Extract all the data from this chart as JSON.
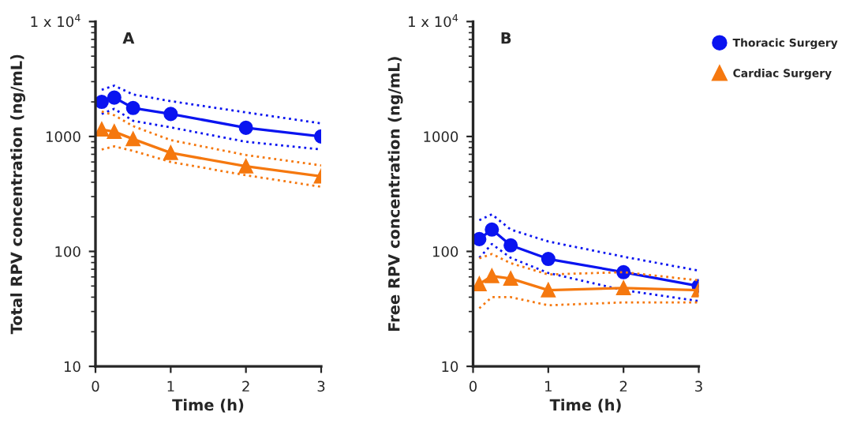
{
  "chart_data": [
    {
      "type": "line",
      "title": "A",
      "xlabel": "Time (h)",
      "ylabel": "Total RPV concentration (ng/mL)",
      "log": "y",
      "line_style": "solid",
      "legend": false,
      "grid": false,
      "x": [
        0.083,
        0.25,
        0.5,
        1,
        2,
        3
      ],
      "series": [
        {
          "color": "#0a14f0",
          "marker": "circle",
          "values": [
            2000,
            2180,
            1770,
            1570,
            1190,
            1000
          ]
        },
        {
          "color": "#0a14f0",
          "marker": "none",
          "line_style": "dotted",
          "values": [
            2550,
            2770,
            2320,
            2030,
            1620,
            1300
          ]
        },
        {
          "color": "#0a14f0",
          "marker": "none",
          "line_style": "dotted",
          "values": [
            1570,
            1740,
            1370,
            1200,
            900,
            770
          ]
        },
        {
          "color": "#f5780f",
          "marker": "triangle",
          "values": [
            1150,
            1100,
            950,
            720,
            550,
            450
          ]
        },
        {
          "color": "#f5780f",
          "marker": "none",
          "line_style": "dotted",
          "values": [
            1650,
            1530,
            1230,
            930,
            690,
            560
          ]
        },
        {
          "color": "#f5780f",
          "marker": "none",
          "line_style": "dotted",
          "values": [
            770,
            820,
            750,
            600,
            460,
            365
          ]
        }
      ],
      "xlim": [
        0,
        3
      ],
      "xticks": [
        0,
        1,
        2,
        3
      ],
      "ylim": [
        10,
        10000
      ],
      "yticks": [
        10,
        100,
        1000,
        {
          "value": 10000,
          "label": "1 x 10$^{4}$"
        }
      ]
    },
    {
      "type": "line",
      "title": "B",
      "xlabel": "Time (h)",
      "ylabel": "Free RPV concentration (ng/mL)",
      "log": "y",
      "line_style": "solid",
      "legend": "right",
      "grid": false,
      "x": [
        0.083,
        0.25,
        0.5,
        1,
        2,
        3
      ],
      "series": [
        {
          "name": "Thoracic Surgery",
          "color": "#0a14f0",
          "marker": "circle",
          "values": [
            128,
            155,
            113,
            86,
            66,
            50
          ]
        },
        {
          "color": "#0a14f0",
          "marker": "none",
          "line_style": "dotted",
          "values": [
            187,
            210,
            155,
            122,
            90,
            68
          ]
        },
        {
          "color": "#0a14f0",
          "marker": "none",
          "line_style": "dotted",
          "values": [
            88,
            116,
            88,
            65,
            46,
            37
          ]
        },
        {
          "name": "Cardiac Surgery",
          "color": "#f5780f",
          "marker": "triangle",
          "values": [
            52,
            61,
            58,
            46,
            48,
            46
          ]
        },
        {
          "color": "#f5780f",
          "marker": "none",
          "line_style": "dotted",
          "values": [
            87,
            95,
            79,
            63,
            66,
            56
          ]
        },
        {
          "color": "#f5780f",
          "marker": "none",
          "line_style": "dotted",
          "values": [
            32,
            40,
            40,
            34,
            36,
            36
          ]
        }
      ],
      "xlim": [
        0,
        3
      ],
      "xticks": [
        0,
        1,
        2,
        3
      ],
      "ylim": [
        10,
        10000
      ],
      "yticks": [
        10,
        100,
        1000,
        {
          "value": 10000,
          "label": "1 x 10$^{4}$"
        }
      ]
    }
  ]
}
